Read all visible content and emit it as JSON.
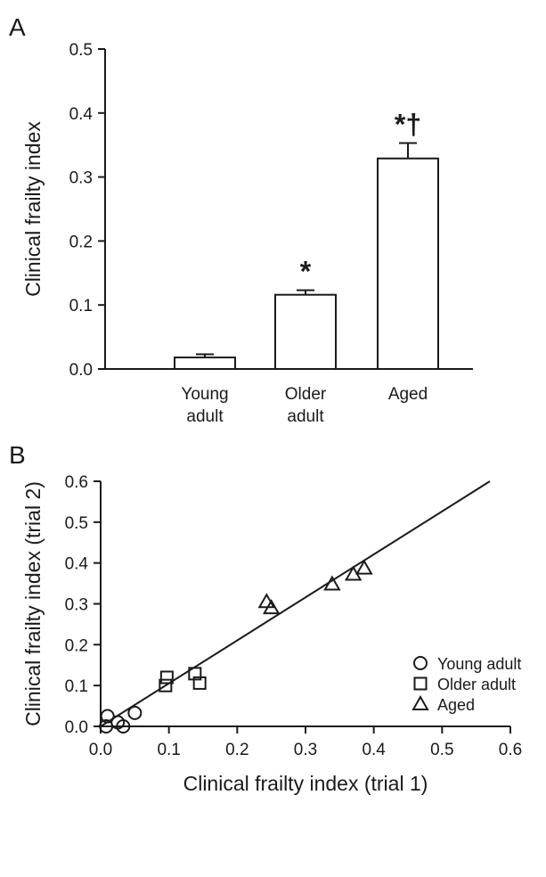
{
  "colors": {
    "ink": "#1a1a1a",
    "bar_fill": "#ffffff",
    "background": "#ffffff"
  },
  "chart_data": [
    {
      "panel_label": "A",
      "type": "bar",
      "ylabel": "Clinical frailty index",
      "ylim": [
        0,
        0.5
      ],
      "yticks": [
        "0.0",
        "0.1",
        "0.2",
        "0.3",
        "0.4",
        "0.5"
      ],
      "ytick_values": [
        0,
        0.1,
        0.2,
        0.3,
        0.4,
        0.5
      ],
      "categories": [
        {
          "line1": "Young",
          "line2": "adult"
        },
        {
          "line1": "Older",
          "line2": "adult"
        },
        {
          "line1": "Aged",
          "line2": ""
        }
      ],
      "values": [
        0.018,
        0.116,
        0.329
      ],
      "errors": [
        0.005,
        0.007,
        0.024
      ],
      "annotations": [
        "",
        "*",
        "*†"
      ],
      "grid": false
    },
    {
      "panel_label": "B",
      "type": "scatter",
      "xlabel": "Clinical frailty index (trial 1)",
      "ylabel": "Clinical frailty index (trial 2)",
      "xlim": [
        0,
        0.6
      ],
      "ylim": [
        0,
        0.6
      ],
      "xticks": [
        "0.0",
        "0.1",
        "0.2",
        "0.3",
        "0.4",
        "0.5",
        "0.6"
      ],
      "xtick_values": [
        0,
        0.1,
        0.2,
        0.3,
        0.4,
        0.5,
        0.6
      ],
      "yticks": [
        "0.0",
        "0.1",
        "0.2",
        "0.3",
        "0.4",
        "0.5",
        "0.6"
      ],
      "ytick_values": [
        0,
        0.1,
        0.2,
        0.3,
        0.4,
        0.5,
        0.6
      ],
      "legend_position": "right",
      "grid": false,
      "series": [
        {
          "name": "Young adult",
          "marker": "circle",
          "points": [
            [
              0.008,
              0.0
            ],
            [
              0.01,
              0.025
            ],
            [
              0.025,
              0.01
            ],
            [
              0.033,
              0.0
            ],
            [
              0.05,
              0.033
            ]
          ]
        },
        {
          "name": "Older adult",
          "marker": "square",
          "points": [
            [
              0.095,
              0.1
            ],
            [
              0.097,
              0.12
            ],
            [
              0.138,
              0.129
            ],
            [
              0.145,
              0.106
            ]
          ]
        },
        {
          "name": "Aged",
          "marker": "triangle",
          "points": [
            [
              0.243,
              0.305
            ],
            [
              0.25,
              0.29
            ],
            [
              0.339,
              0.348
            ],
            [
              0.37,
              0.372
            ],
            [
              0.386,
              0.387
            ]
          ]
        }
      ],
      "fit_line": {
        "x": [
          0.0,
          0.57
        ],
        "y": [
          0.0,
          0.6
        ]
      }
    }
  ]
}
